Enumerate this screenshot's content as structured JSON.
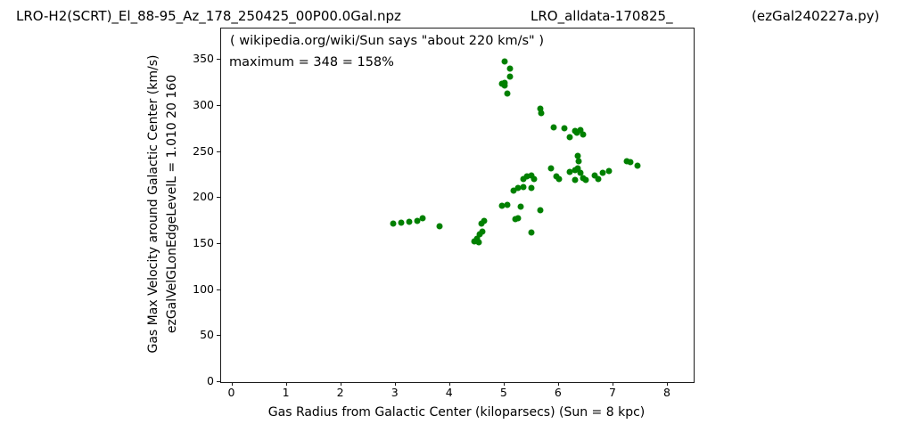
{
  "header": {
    "title_left": "LRO-H2(SCRT)_El_88-95_Az_178_250425_00P00.0Gal.npz",
    "title_center": "LRO_alldata-170825_",
    "title_right": "(ezGal240227a.py)"
  },
  "chart_data": {
    "type": "scatter",
    "title": "LRO-H2(SCRT)_El_88-95_Az_178_250425_00P00.0Gal.npz   LRO_alldata-170825_   (ezGal240227a.py)",
    "xlabel": "Gas Radius from Galactic Center (kiloparsecs)  (Sun = 8 kpc)",
    "ylabel_line1": "Gas Max Velocity around Galactic Center (km/s)",
    "ylabel_line2": "ezGalVelGLonEdgeLevelL = 1.010  20  160",
    "annotations": [
      "( wikipedia.org/wiki/Sun says \"about 220 km/s\" )",
      "maximum = 348 = 158%"
    ],
    "legend": null,
    "grid": false,
    "marker_color": "#008000",
    "xlim": [
      -0.205,
      8.475
    ],
    "ylim": [
      0,
      384.2
    ],
    "xticks": [
      0,
      1,
      2,
      3,
      4,
      5,
      6,
      7,
      8
    ],
    "yticks": [
      0,
      50,
      100,
      150,
      200,
      250,
      300,
      350
    ],
    "points": [
      [
        2.95,
        172
      ],
      [
        3.1,
        173
      ],
      [
        3.25,
        174
      ],
      [
        3.4,
        175
      ],
      [
        3.5,
        178
      ],
      [
        3.8,
        169
      ],
      [
        4.45,
        153
      ],
      [
        4.52,
        152
      ],
      [
        4.5,
        156
      ],
      [
        4.55,
        161
      ],
      [
        4.6,
        164
      ],
      [
        4.57,
        172
      ],
      [
        4.63,
        175
      ],
      [
        4.95,
        192
      ],
      [
        5.05,
        193
      ],
      [
        5.3,
        191
      ],
      [
        5.17,
        208
      ],
      [
        5.25,
        211
      ],
      [
        5.35,
        212
      ],
      [
        5.5,
        211
      ],
      [
        5.65,
        187
      ],
      [
        5.25,
        178
      ],
      [
        5.2,
        177
      ],
      [
        5.5,
        163
      ],
      [
        5.35,
        221
      ],
      [
        5.42,
        224
      ],
      [
        5.5,
        225
      ],
      [
        5.55,
        221
      ],
      [
        5.85,
        232
      ],
      [
        5.95,
        224
      ],
      [
        6.0,
        221
      ],
      [
        6.2,
        228
      ],
      [
        6.3,
        230
      ],
      [
        6.35,
        232
      ],
      [
        6.4,
        227
      ],
      [
        6.3,
        220
      ],
      [
        6.45,
        222
      ],
      [
        6.5,
        220
      ],
      [
        6.65,
        225
      ],
      [
        6.73,
        221
      ],
      [
        6.8,
        227
      ],
      [
        6.92,
        229
      ],
      [
        7.25,
        240
      ],
      [
        7.31,
        239
      ],
      [
        7.45,
        235
      ],
      [
        6.35,
        246
      ],
      [
        6.36,
        240
      ],
      [
        5.9,
        277
      ],
      [
        6.1,
        276
      ],
      [
        6.2,
        266
      ],
      [
        6.3,
        273
      ],
      [
        6.33,
        271
      ],
      [
        6.4,
        274
      ],
      [
        6.45,
        269
      ],
      [
        5.65,
        297
      ],
      [
        5.67,
        292
      ],
      [
        5.0,
        348
      ],
      [
        5.1,
        341
      ],
      [
        5.1,
        332
      ],
      [
        5.0,
        325
      ],
      [
        4.95,
        324
      ],
      [
        5.0,
        322
      ],
      [
        5.05,
        314
      ]
    ]
  }
}
